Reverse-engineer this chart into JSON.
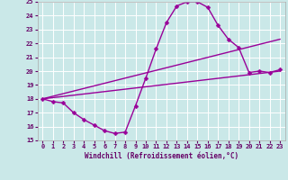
{
  "xlabel": "Windchill (Refroidissement éolien,°C)",
  "background_color": "#cae8e8",
  "grid_color": "#ffffff",
  "line_color": "#990099",
  "xlim": [
    -0.5,
    23.5
  ],
  "ylim": [
    15,
    25
  ],
  "yticks": [
    15,
    16,
    17,
    18,
    19,
    20,
    21,
    22,
    23,
    24,
    25
  ],
  "xticks": [
    0,
    1,
    2,
    3,
    4,
    5,
    6,
    7,
    8,
    9,
    10,
    11,
    12,
    13,
    14,
    15,
    16,
    17,
    18,
    19,
    20,
    21,
    22,
    23
  ],
  "curve1_x": [
    0,
    1,
    2,
    3,
    4,
    5,
    6,
    7,
    8,
    9,
    10,
    11,
    12,
    13,
    14,
    15,
    16,
    17,
    18,
    19,
    20,
    21,
    22,
    23
  ],
  "curve1_y": [
    18.0,
    17.8,
    17.7,
    17.0,
    16.5,
    16.1,
    15.7,
    15.5,
    15.6,
    17.5,
    19.5,
    21.6,
    23.5,
    24.7,
    25.0,
    25.0,
    24.6,
    23.3,
    22.3,
    21.7,
    19.9,
    20.0,
    19.9,
    20.1
  ],
  "curve2_x": [
    0,
    23
  ],
  "curve2_y": [
    18.0,
    22.3
  ],
  "curve3_x": [
    0,
    23
  ],
  "curve3_y": [
    18.0,
    20.0
  ],
  "markersize": 2.5,
  "linewidth": 1.0
}
